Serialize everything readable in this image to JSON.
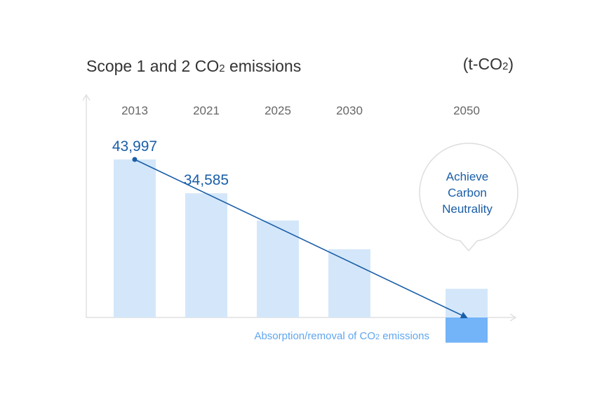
{
  "chart_data": {
    "type": "bar",
    "title_main": "Scope 1 and 2 CO",
    "title_sub": "2",
    "title_tail": " emissions",
    "unit_main": "(t-CO",
    "unit_sub": "2",
    "unit_tail": ")",
    "categories": [
      "2013",
      "2021",
      "2025",
      "2030",
      "2050"
    ],
    "values": [
      43997,
      34585,
      27000,
      19000,
      8000
    ],
    "value_labels": [
      "43,997",
      "34,585",
      "",
      "",
      ""
    ],
    "negative_value": 7000,
    "negative_label_main": "Absorption/removal of CO",
    "negative_label_sub": "2",
    "negative_label_tail": " emissions",
    "annotation_lines": [
      "Achieve",
      "Carbon",
      "Neutrality"
    ],
    "ylim": [
      -7000,
      43997
    ],
    "colors": {
      "bar": "#d4e7fa",
      "negative_bar": "#73b3f7",
      "trend_line": "#1a5ea8",
      "axis": "#e0e0e0",
      "bubble_border": "#dddddd"
    }
  }
}
